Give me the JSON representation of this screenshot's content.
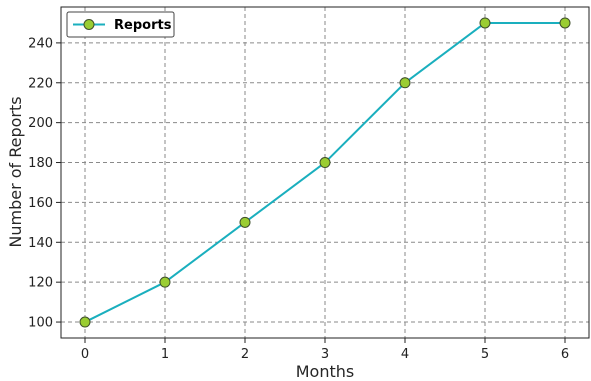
{
  "chart_data": {
    "type": "line",
    "title": "",
    "xlabel": "Months",
    "ylabel": "Number of Reports",
    "x": [
      0,
      1,
      2,
      3,
      4,
      5,
      6
    ],
    "series": [
      {
        "name": "Reports",
        "values": [
          100,
          120,
          150,
          180,
          220,
          250,
          250
        ]
      }
    ],
    "xlim": [
      -0.3,
      6.3
    ],
    "ylim": [
      92,
      258
    ],
    "xticks": [
      "0",
      "1",
      "2",
      "3",
      "4",
      "5",
      "6"
    ],
    "yticks": [
      "100",
      "120",
      "140",
      "160",
      "180",
      "200",
      "220",
      "240"
    ],
    "grid": true,
    "legend_position": "top-left",
    "colors": {
      "line": "#1AAFBE",
      "marker_fill": "#9ACD32",
      "marker_edge": "#3E4E2A",
      "grid": "#8A8A8A"
    }
  }
}
